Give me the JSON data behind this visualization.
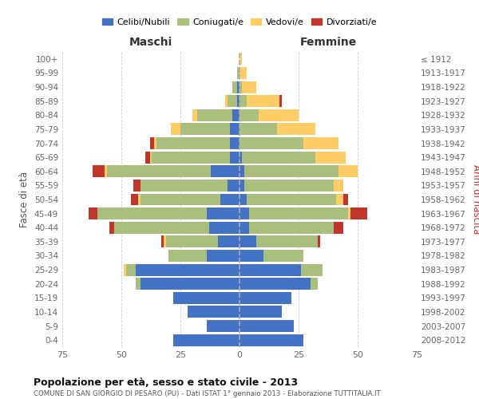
{
  "age_groups": [
    "0-4",
    "5-9",
    "10-14",
    "15-19",
    "20-24",
    "25-29",
    "30-34",
    "35-39",
    "40-44",
    "45-49",
    "50-54",
    "55-59",
    "60-64",
    "65-69",
    "70-74",
    "75-79",
    "80-84",
    "85-89",
    "90-94",
    "95-99",
    "100+"
  ],
  "birth_years": [
    "2008-2012",
    "2003-2007",
    "1998-2002",
    "1993-1997",
    "1988-1992",
    "1983-1987",
    "1978-1982",
    "1973-1977",
    "1968-1972",
    "1963-1967",
    "1958-1962",
    "1953-1957",
    "1948-1952",
    "1943-1947",
    "1938-1942",
    "1933-1937",
    "1928-1932",
    "1923-1927",
    "1918-1922",
    "1913-1917",
    "≤ 1912"
  ],
  "maschi": {
    "celibi": [
      28,
      14,
      22,
      28,
      42,
      44,
      14,
      9,
      13,
      14,
      8,
      5,
      12,
      4,
      4,
      4,
      3,
      1,
      1,
      0,
      0
    ],
    "coniugati": [
      0,
      0,
      0,
      0,
      2,
      4,
      16,
      22,
      40,
      46,
      34,
      37,
      44,
      33,
      31,
      21,
      15,
      4,
      2,
      1,
      0
    ],
    "vedovi": [
      0,
      0,
      0,
      0,
      0,
      1,
      0,
      1,
      0,
      0,
      1,
      0,
      1,
      1,
      1,
      4,
      2,
      1,
      0,
      0,
      0
    ],
    "divorziati": [
      0,
      0,
      0,
      0,
      0,
      0,
      0,
      1,
      2,
      4,
      3,
      3,
      5,
      2,
      2,
      0,
      0,
      0,
      0,
      0,
      0
    ]
  },
  "femmine": {
    "nubili": [
      27,
      23,
      18,
      22,
      30,
      26,
      10,
      7,
      4,
      4,
      3,
      2,
      2,
      1,
      0,
      0,
      0,
      0,
      0,
      0,
      0
    ],
    "coniugate": [
      0,
      0,
      0,
      0,
      3,
      9,
      17,
      26,
      36,
      42,
      38,
      38,
      40,
      31,
      27,
      16,
      8,
      3,
      1,
      0,
      0
    ],
    "vedove": [
      0,
      0,
      0,
      0,
      0,
      0,
      0,
      0,
      0,
      1,
      3,
      4,
      8,
      13,
      15,
      16,
      17,
      14,
      6,
      3,
      1
    ],
    "divorziate": [
      0,
      0,
      0,
      0,
      0,
      0,
      0,
      1,
      4,
      7,
      2,
      0,
      0,
      0,
      0,
      0,
      0,
      1,
      0,
      0,
      0
    ]
  },
  "colors": {
    "celibi": "#4472C4",
    "coniugati": "#AABF7E",
    "vedovi": "#FFCC66",
    "divorziati": "#C0362C"
  },
  "title": "Popolazione per età, sesso e stato civile - 2013",
  "subtitle": "COMUNE DI SAN GIORGIO DI PESARO (PU) - Dati ISTAT 1° gennaio 2013 - Elaborazione TUTTITALIA.IT",
  "xlabel_left": "Maschi",
  "xlabel_right": "Femmine",
  "ylabel_left": "Fasce di età",
  "ylabel_right": "Anni di nascita",
  "xlim": 75,
  "legend_labels": [
    "Celibi/Nubili",
    "Coniugati/e",
    "Vedovi/e",
    "Divorziati/e"
  ],
  "background_color": "#FFFFFF"
}
